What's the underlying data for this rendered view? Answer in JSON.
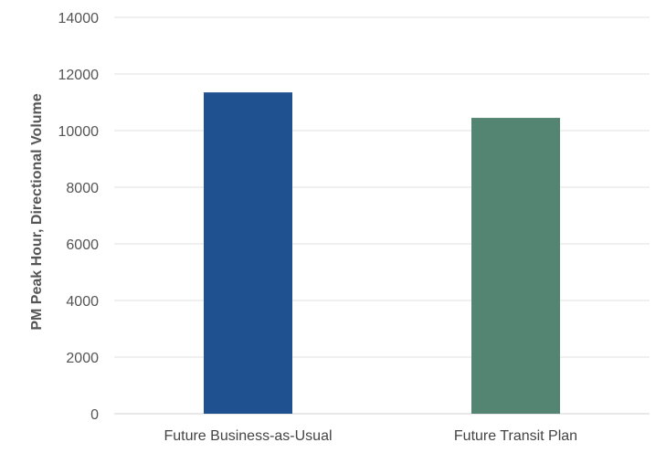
{
  "chart_data": {
    "type": "bar",
    "title": "",
    "xlabel": "",
    "ylabel": "PM Peak Hour, Directional Volume",
    "categories": [
      "Future Business-as-Usual",
      "Future Transit Plan"
    ],
    "values": [
      11350,
      10450
    ],
    "bar_colors": [
      "#1f5190",
      "#548472"
    ],
    "ylim": [
      0,
      14000
    ],
    "yticks": [
      "0",
      "2000",
      "4000",
      "6000",
      "8000",
      "10000",
      "12000",
      "14000"
    ],
    "grid": true,
    "legend": "none"
  }
}
